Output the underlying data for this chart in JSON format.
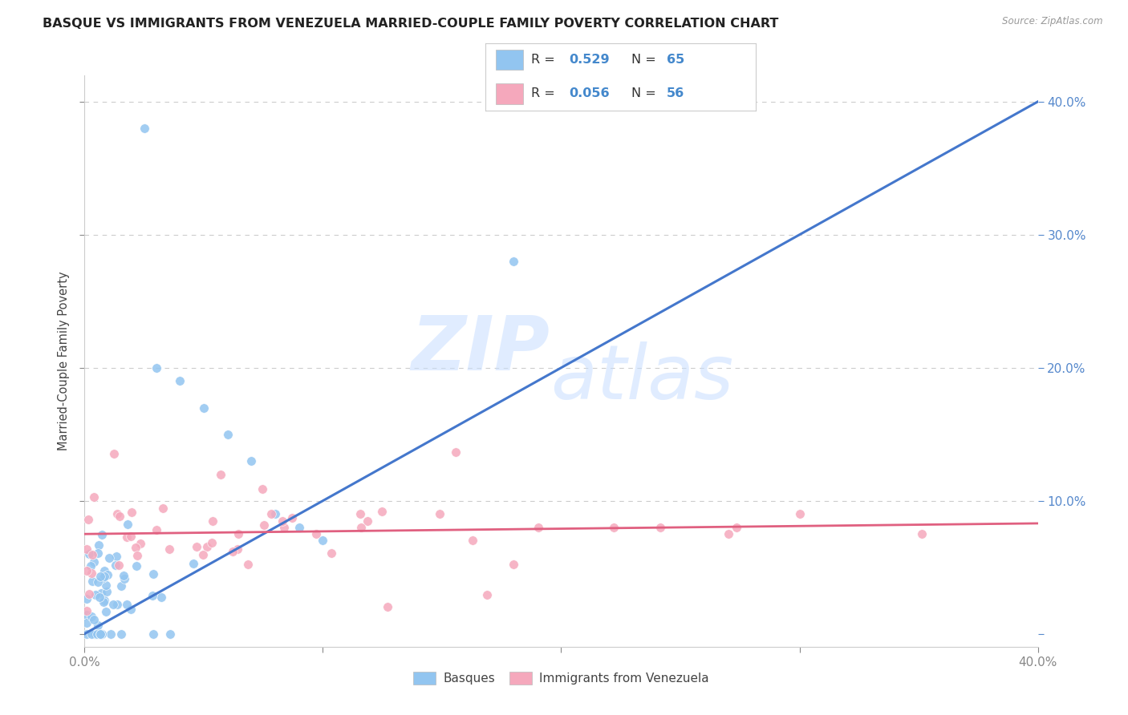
{
  "title": "BASQUE VS IMMIGRANTS FROM VENEZUELA MARRIED-COUPLE FAMILY POVERTY CORRELATION CHART",
  "source": "Source: ZipAtlas.com",
  "ylabel": "Married-Couple Family Poverty",
  "watermark_zip": "ZIP",
  "watermark_atlas": "atlas",
  "legend_blue_label": "Basques",
  "legend_pink_label": "Immigrants from Venezuela",
  "blue_R": 0.529,
  "blue_N": 65,
  "pink_R": 0.056,
  "pink_N": 56,
  "blue_color": "#92C5F0",
  "pink_color": "#F5A8BC",
  "blue_line_color": "#4477CC",
  "pink_line_color": "#E06080",
  "background_color": "#FFFFFF",
  "grid_color": "#CCCCCC",
  "xlim": [
    0.0,
    0.4
  ],
  "ylim": [
    -0.01,
    0.42
  ],
  "blue_line_x0": 0.0,
  "blue_line_y0": 0.0,
  "blue_line_x1": 0.4,
  "blue_line_y1": 0.4,
  "pink_line_x0": 0.0,
  "pink_line_y0": 0.075,
  "pink_line_x1": 0.4,
  "pink_line_y1": 0.083
}
